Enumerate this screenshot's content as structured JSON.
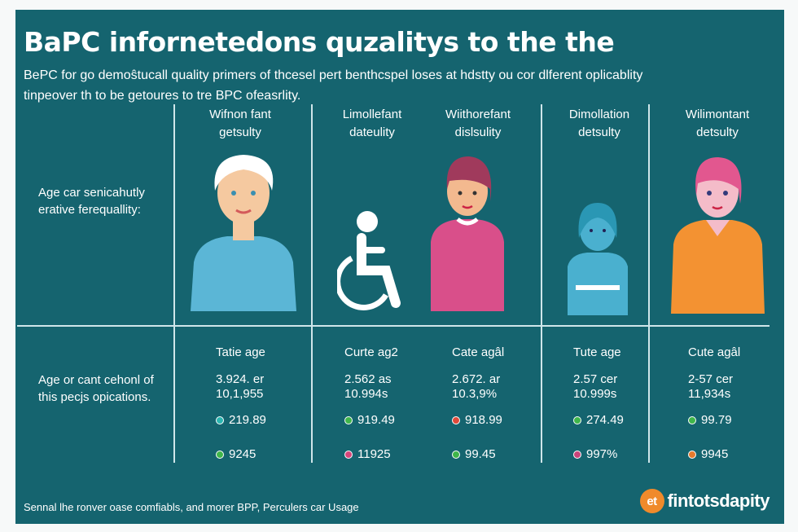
{
  "title": "BaPC infornetedons quzalitys to the the",
  "intro": [
    "BePC for go demoŝtucall quality primers of thcesel pert benthcspel loses at hdstty ou cor dlferent oplicablity",
    "tinpeover th to be getoures to tre BPC ofeasrlity."
  ],
  "columns": [
    {
      "head": [
        "Wifnon fant",
        "getsulty"
      ],
      "stat_head": "Tatie age",
      "stat_lines": [
        "3.924. er",
        "10,1,955"
      ],
      "dot1": {
        "color": "#2bb5b0",
        "value": "219.89"
      },
      "dot2": {
        "color": "#3fb54a",
        "value": "9245"
      }
    },
    {
      "head": [
        "Limollefant",
        "dateulity"
      ],
      "stat_head": "Curte ag2",
      "stat_lines": [
        "2.562 as",
        "10.994s"
      ],
      "dot1": {
        "color": "#3fb54a",
        "value": "919.49"
      },
      "dot2": {
        "color": "#d6457a",
        "value": "11925"
      }
    },
    {
      "head": [
        "Wiithorefant",
        "dislsulity"
      ],
      "stat_head": "Cate agâl",
      "stat_lines": [
        "2.672. ar",
        "10.3,9%"
      ],
      "dot1": {
        "color": "#e0493a",
        "value": "918.99"
      },
      "dot2": {
        "color": "#3fb54a",
        "value": "99.45"
      }
    },
    {
      "head": [
        "Dimollation",
        "detsulty"
      ],
      "stat_head": "Tute age",
      "stat_lines": [
        "2.57 cer",
        "10.999s"
      ],
      "dot1": {
        "color": "#3fb54a",
        "value": "274.49"
      },
      "dot2": {
        "color": "#c9437a",
        "value": "997%"
      }
    },
    {
      "head": [
        "Wilimontant",
        "detsulty"
      ],
      "stat_head": "Cute agâl",
      "stat_lines": [
        "2-57 cer",
        "11,934s"
      ],
      "dot1": {
        "color": "#3fb54a",
        "value": "99.79"
      },
      "dot2": {
        "color": "#e57a2e",
        "value": "9945"
      }
    }
  ],
  "row_labels": {
    "figures": [
      "Age car senicahutly",
      "erative ferequallity:"
    ],
    "stats": [
      "Age or cant cehonl of",
      "this pecjs opications."
    ]
  },
  "footer": "Sennal lhe ronver oase comfiabls, and morer BPP, Perculers car Usage",
  "logo": {
    "badge": "et",
    "text": "fintotsdapity"
  }
}
